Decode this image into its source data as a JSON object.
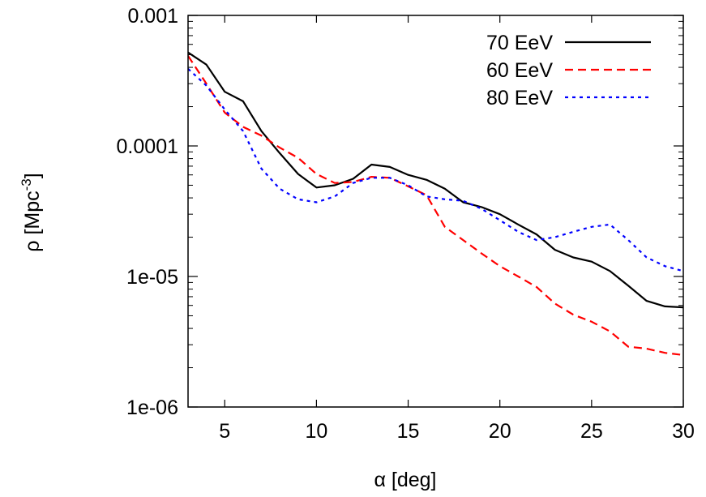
{
  "chart_data": {
    "type": "line",
    "title": "",
    "xlabel": "α [deg]",
    "ylabel": "ρ [Mpc",
    "ylabel_sup": "-3",
    "ylabel_tail": "]",
    "xlim": [
      3,
      30
    ],
    "ylim": [
      1e-06,
      0.001
    ],
    "yscale": "log",
    "x_ticks": [
      5,
      10,
      15,
      20,
      25,
      30
    ],
    "x_tick_labels": [
      "5",
      "10",
      "15",
      "20",
      "25",
      "30"
    ],
    "y_ticks": [
      1e-06,
      1e-05,
      0.0001,
      0.001
    ],
    "y_tick_labels": [
      "1e-06",
      "1e-05",
      "0.0001",
      "0.001"
    ],
    "grid": false,
    "legend_position": "top-right",
    "series": [
      {
        "name": "70 EeV",
        "color": "#000000",
        "dash": "solid",
        "x": [
          3,
          4,
          5,
          6,
          7,
          8,
          9,
          10,
          11,
          12,
          13,
          14,
          15,
          16,
          17,
          18,
          19,
          20,
          21,
          22,
          23,
          24,
          25,
          26,
          27,
          28,
          29,
          30
        ],
        "y": [
          0.00052,
          0.00042,
          0.00026,
          0.00022,
          0.00013,
          8.8e-05,
          6.1e-05,
          4.8e-05,
          5e-05,
          5.6e-05,
          7.2e-05,
          6.9e-05,
          6e-05,
          5.5e-05,
          4.7e-05,
          3.7e-05,
          3.4e-05,
          3e-05,
          2.5e-05,
          2.1e-05,
          1.6e-05,
          1.4e-05,
          1.3e-05,
          1.1e-05,
          8.5e-06,
          6.5e-06,
          5.9e-06,
          5.8e-06
        ]
      },
      {
        "name": "60 EeV",
        "color": "#ff0000",
        "dash": "dashed",
        "x": [
          3,
          4,
          5,
          6,
          7,
          8,
          9,
          10,
          11,
          12,
          13,
          14,
          15,
          16,
          17,
          18,
          19,
          20,
          21,
          22,
          23,
          24,
          25,
          26,
          27,
          28,
          29,
          30
        ],
        "y": [
          0.00049,
          0.0003,
          0.00018,
          0.00014,
          0.00012,
          9.7e-05,
          8.1e-05,
          6.1e-05,
          5.2e-05,
          5.3e-05,
          5.8e-05,
          5.7e-05,
          4.9e-05,
          4.2e-05,
          2.4e-05,
          1.9e-05,
          1.5e-05,
          1.2e-05,
          1e-05,
          8.3e-06,
          6.2e-06,
          5.1e-06,
          4.5e-06,
          3.8e-06,
          2.9e-06,
          2.8e-06,
          2.6e-06,
          2.5e-06
        ]
      },
      {
        "name": "80 EeV",
        "color": "#0000ff",
        "dash": "dotted",
        "x": [
          3,
          4,
          5,
          6,
          7,
          8,
          9,
          10,
          11,
          12,
          13,
          14,
          15,
          16,
          17,
          18,
          19,
          20,
          21,
          22,
          23,
          24,
          25,
          26,
          27,
          28,
          29,
          30
        ],
        "y": [
          0.00039,
          0.00029,
          0.00019,
          0.00013,
          6.7e-05,
          4.7e-05,
          3.9e-05,
          3.7e-05,
          4.1e-05,
          5.2e-05,
          5.7e-05,
          5.7e-05,
          5e-05,
          4.1e-05,
          3.9e-05,
          3.8e-05,
          3.3e-05,
          2.7e-05,
          2.2e-05,
          1.9e-05,
          2e-05,
          2.2e-05,
          2.4e-05,
          2.5e-05,
          1.9e-05,
          1.4e-05,
          1.2e-05,
          1.1e-05
        ]
      }
    ]
  }
}
